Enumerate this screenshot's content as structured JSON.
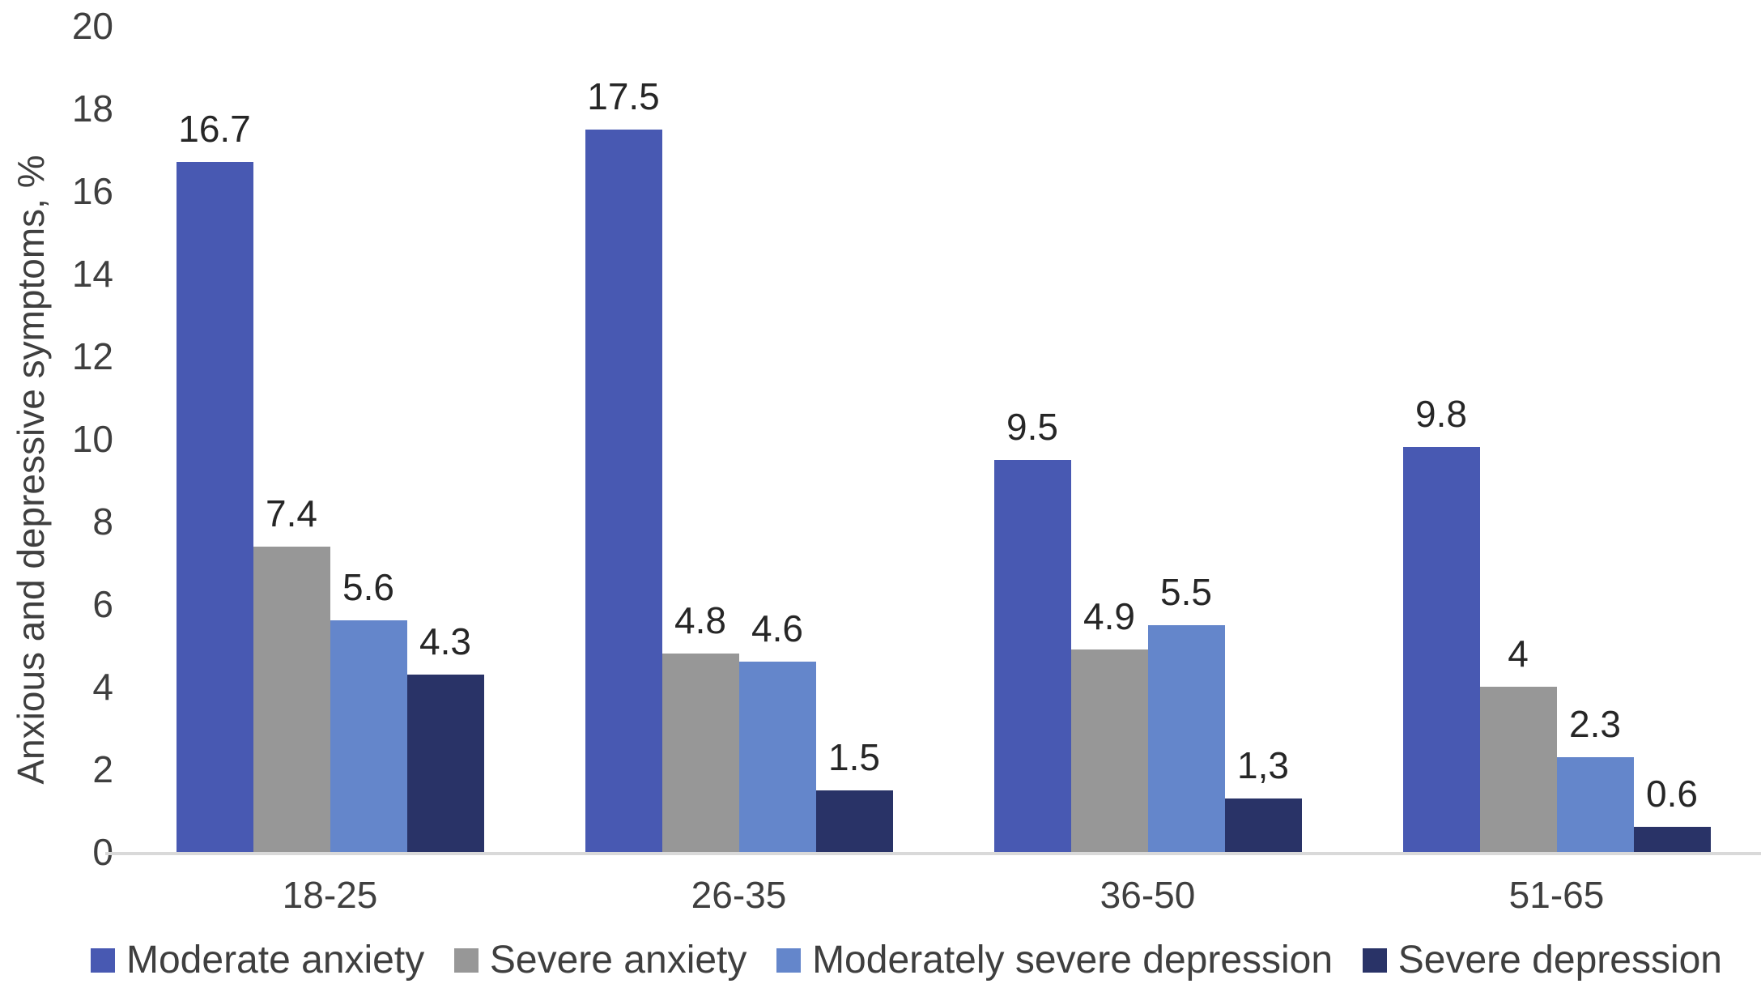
{
  "chart_data": {
    "type": "bar",
    "title": "",
    "xlabel": "",
    "ylabel": "Anxious and depressive symptoms, %",
    "ylim": [
      0,
      20
    ],
    "yticks": [
      0,
      2,
      4,
      6,
      8,
      10,
      12,
      14,
      16,
      18,
      20
    ],
    "grid": false,
    "legend_position": "bottom",
    "categories": [
      "18-25",
      "26-35",
      "36-50",
      "51-65"
    ],
    "series": [
      {
        "name": "Moderate anxiety",
        "color": "#4859b2",
        "values": [
          16.7,
          17.5,
          9.5,
          9.8
        ],
        "labels": [
          "16.7",
          "17.5",
          "9.5",
          "9.8"
        ]
      },
      {
        "name": "Severe anxiety",
        "color": "#979797",
        "values": [
          7.4,
          4.8,
          4.9,
          4
        ],
        "labels": [
          "7.4",
          "4.8",
          "4.9",
          "4"
        ]
      },
      {
        "name": "Moderately severe depression",
        "color": "#6486cb",
        "values": [
          5.6,
          4.6,
          5.5,
          2.3
        ],
        "labels": [
          "5.6",
          "4.6",
          "5.5",
          "2.3"
        ]
      },
      {
        "name": "Severe depression",
        "color": "#293367",
        "values": [
          4.3,
          1.5,
          1.3,
          0.6
        ],
        "labels": [
          "4.3",
          "1.5",
          "1,3",
          "0.6"
        ]
      }
    ],
    "colors": {
      "axis_text": "#3f3f3f",
      "value_text": "#262626",
      "baseline": "#d9d9d9"
    }
  }
}
